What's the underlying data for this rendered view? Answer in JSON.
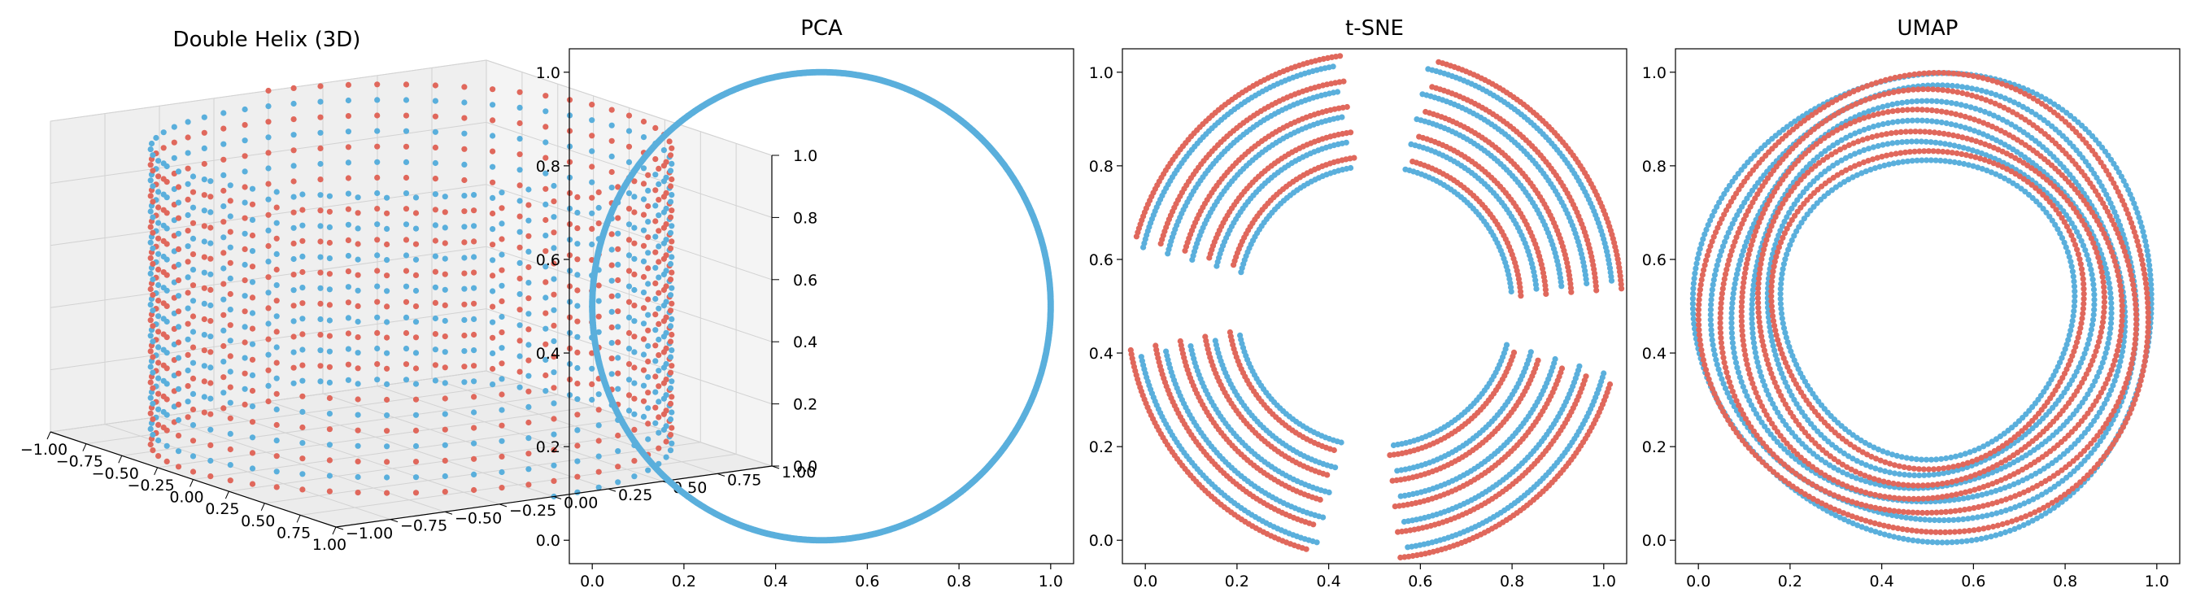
{
  "colors": {
    "blue": "#5aafdc",
    "red": "#e0685c",
    "axis": "#000000",
    "pane": "#f2f2f2",
    "grid": "#d2d2d2"
  },
  "chart_data": [
    {
      "type": "scatter",
      "projection": "3d",
      "title": "Double Helix (3D)",
      "xlim": [
        -1.0,
        1.0
      ],
      "ylim": [
        -1.0,
        1.0
      ],
      "zlim": [
        0.0,
        1.0
      ],
      "xticks": [
        "−1.00",
        "−0.75",
        "−0.50",
        "−0.25",
        "0.00",
        "0.25",
        "0.50",
        "0.75",
        "1.00"
      ],
      "yticks": [
        "−1.00",
        "−0.75",
        "−0.50",
        "−0.25",
        "0.00",
        "0.25",
        "0.50",
        "0.75",
        "1.00"
      ],
      "zticks": [
        "0.0",
        "0.2",
        "0.4",
        "0.6",
        "0.8",
        "1.0"
      ],
      "grid": true,
      "series": [
        {
          "color": "blue",
          "shape": "helix",
          "turns": 10,
          "radius": 1.0,
          "z_range": [
            0,
            1
          ],
          "phase_deg": 0
        },
        {
          "color": "red",
          "shape": "helix",
          "turns": 10,
          "radius": 1.0,
          "z_range": [
            0,
            1
          ],
          "phase_deg": 180
        }
      ]
    },
    {
      "type": "scatter",
      "title": "PCA",
      "xlim": [
        -0.05,
        1.05
      ],
      "ylim": [
        -0.05,
        1.05
      ],
      "xticks": [
        "0.0",
        "0.2",
        "0.4",
        "0.6",
        "0.8",
        "1.0"
      ],
      "yticks": [
        "0.0",
        "0.2",
        "0.4",
        "0.6",
        "0.8",
        "1.0"
      ],
      "series": [
        {
          "color": "blue",
          "shape": "ring",
          "center": [
            0.5,
            0.5
          ],
          "radius": 0.5
        }
      ]
    },
    {
      "type": "scatter",
      "title": "t-SNE",
      "xlim": [
        -0.05,
        1.05
      ],
      "ylim": [
        -0.05,
        1.05
      ],
      "xticks": [
        "0.0",
        "0.2",
        "0.4",
        "0.6",
        "0.8",
        "1.0"
      ],
      "yticks": [
        "0.0",
        "0.2",
        "0.4",
        "0.6",
        "0.8",
        "1.0"
      ],
      "series": [
        {
          "color": "blue",
          "shape": "arc-bands",
          "center": [
            0.5,
            0.5
          ],
          "inner_radius": 0.3,
          "outer_radius": 0.52,
          "bands": 5,
          "segments_deg": [
            [
              6,
              77
            ],
            [
              100,
              166
            ],
            [
              192,
              256
            ],
            [
              278,
              344
            ]
          ]
        },
        {
          "color": "red",
          "shape": "arc-bands",
          "center": [
            0.5,
            0.5
          ],
          "inner_radius": 0.32,
          "outer_radius": 0.54,
          "bands": 5,
          "segments_deg": [
            [
              4,
              75
            ],
            [
              98,
              164
            ],
            [
              190,
              254
            ],
            [
              276,
              342
            ]
          ]
        }
      ]
    },
    {
      "type": "scatter",
      "title": "UMAP",
      "xlim": [
        -0.05,
        1.05
      ],
      "ylim": [
        -0.05,
        1.05
      ],
      "xticks": [
        "0.0",
        "0.2",
        "0.4",
        "0.6",
        "0.8",
        "1.0"
      ],
      "yticks": [
        "0.0",
        "0.2",
        "0.4",
        "0.6",
        "0.8",
        "1.0"
      ],
      "series": [
        {
          "color": "blue",
          "shape": "annulus",
          "center": [
            0.5,
            0.5
          ],
          "inner_radius": 0.32,
          "outer_radius": 0.5,
          "rings": 6
        },
        {
          "color": "red",
          "shape": "annulus",
          "center": [
            0.5,
            0.5
          ],
          "inner_radius": 0.34,
          "outer_radius": 0.49,
          "rings": 5
        }
      ]
    }
  ]
}
